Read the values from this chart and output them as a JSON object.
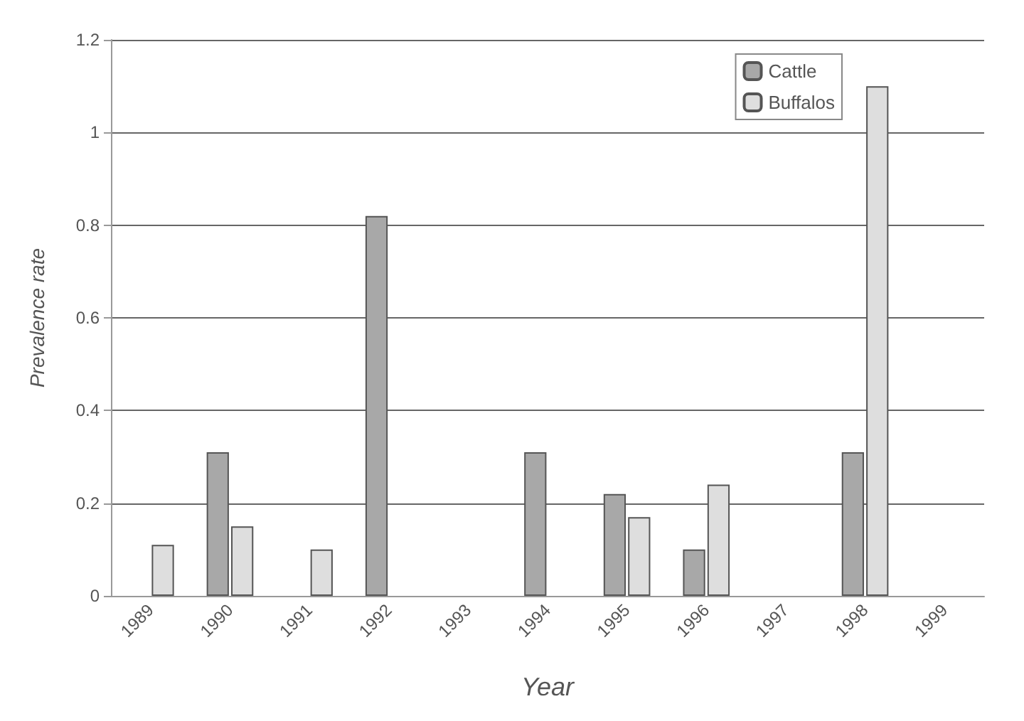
{
  "chart_data": {
    "type": "bar",
    "xlabel": "Year",
    "ylabel": "Prevalence rate",
    "categories": [
      "1989",
      "1990",
      "1991",
      "1992",
      "1993",
      "1994",
      "1995",
      "1996",
      "1997",
      "1998",
      "1999"
    ],
    "series": [
      {
        "name": "Cattle",
        "color": "#a8a8a8",
        "values": [
          null,
          0.31,
          null,
          0.82,
          null,
          0.31,
          0.22,
          0.1,
          null,
          0.31,
          null
        ]
      },
      {
        "name": "Buffalos",
        "color": "#dedede",
        "values": [
          0.11,
          0.15,
          0.1,
          null,
          null,
          null,
          0.17,
          0.24,
          null,
          1.1,
          null
        ]
      }
    ],
    "ylim": [
      0,
      1.2
    ],
    "yticks": [
      0,
      0.2,
      0.4,
      0.6,
      0.8,
      1,
      1.2
    ],
    "grid": "y",
    "legend": "top right"
  }
}
